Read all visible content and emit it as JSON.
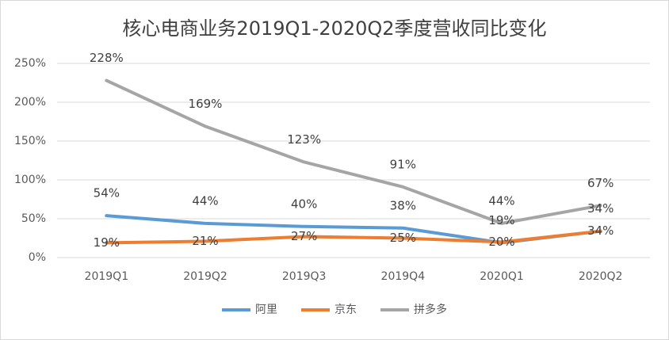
{
  "chart_data": {
    "type": "line",
    "title": "核心电商业务2019Q1-2020Q2季度营收同比变化",
    "categories": [
      "2019Q1",
      "2019Q2",
      "2019Q3",
      "2019Q4",
      "2020Q1",
      "2020Q2"
    ],
    "series": [
      {
        "name": "阿里",
        "color": "#5b9bd5",
        "values": [
          54,
          44,
          40,
          38,
          19,
          34
        ],
        "value_labels": [
          "54%",
          "44%",
          "40%",
          "38%",
          "19%",
          "34%"
        ]
      },
      {
        "name": "京东",
        "color": "#ed7d31",
        "values": [
          19,
          21,
          27,
          25,
          20,
          34
        ],
        "value_labels": [
          "19%",
          "21%",
          "27%",
          "25%",
          "20%",
          "34%"
        ]
      },
      {
        "name": "拼多多",
        "color": "#a5a5a5",
        "values": [
          228,
          169,
          123,
          91,
          44,
          67
        ],
        "value_labels": [
          "228%",
          "169%",
          "123%",
          "91%",
          "44%",
          "67%"
        ]
      }
    ],
    "ylim": [
      0,
      250
    ],
    "yticks": [
      {
        "value": 0,
        "label": "0%"
      },
      {
        "value": 50,
        "label": "50%"
      },
      {
        "value": 100,
        "label": "100%"
      },
      {
        "value": 150,
        "label": "150%"
      },
      {
        "value": 200,
        "label": "200%"
      },
      {
        "value": 250,
        "label": "250%"
      }
    ],
    "grid": true,
    "legend": "bottom"
  }
}
